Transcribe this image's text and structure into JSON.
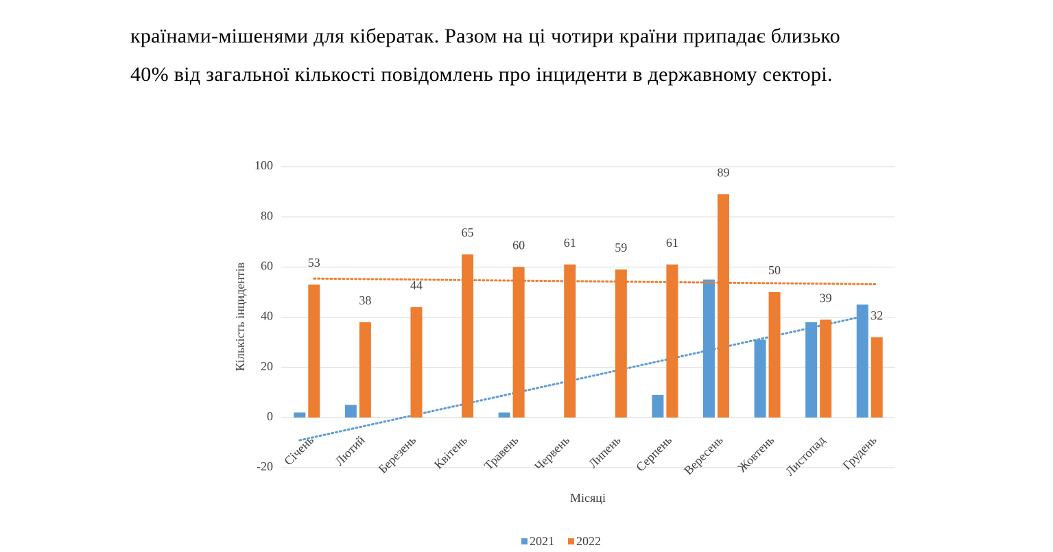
{
  "text": [
    "країнами-мішенями для кібератак. Разом на ці чотири країни припадає близько",
    "40% від загальної кількості повідомлень про інциденти в державному секторі."
  ],
  "chart_data": {
    "type": "bar",
    "y_label": "Кількість інцидентів",
    "x_label": "Місяці",
    "categories": [
      "Січень",
      "Лютий",
      "Березень",
      "Квітень",
      "Травень",
      "Червень",
      "Липень",
      "Серпень",
      "Вересень",
      "Жовтень",
      "Листопад",
      "Грудень"
    ],
    "series": [
      {
        "name": "2021",
        "color": "#5b9bd5",
        "values": [
          2,
          5,
          0,
          0,
          2,
          0,
          0,
          9,
          55,
          31,
          38,
          45
        ],
        "trendline": "linear",
        "data_labels": false
      },
      {
        "name": "2022",
        "color": "#ed7d31",
        "values": [
          53,
          38,
          44,
          65,
          60,
          61,
          59,
          61,
          89,
          50,
          39,
          32
        ],
        "trendline": "linear",
        "data_labels": true
      }
    ],
    "ylim": [
      -20,
      100
    ],
    "yticks": [
      -20,
      0,
      20,
      40,
      60,
      80,
      100
    ],
    "grid": true,
    "legend": "bottom"
  }
}
